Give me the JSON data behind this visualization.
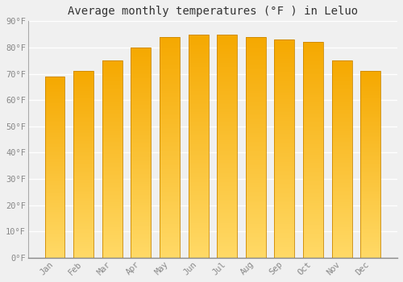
{
  "title": "Average monthly temperatures (°F ) in Leluo",
  "months": [
    "Jan",
    "Feb",
    "Mar",
    "Apr",
    "May",
    "Jun",
    "Jul",
    "Aug",
    "Sep",
    "Oct",
    "Nov",
    "Dec"
  ],
  "values": [
    69,
    71,
    75,
    80,
    84,
    85,
    85,
    84,
    83,
    82,
    75,
    71
  ],
  "bar_color_top": "#F5A800",
  "bar_color_bottom": "#FFD966",
  "ylim": [
    0,
    90
  ],
  "yticks": [
    0,
    10,
    20,
    30,
    40,
    50,
    60,
    70,
    80,
    90
  ],
  "ytick_labels": [
    "0°F",
    "10°F",
    "20°F",
    "30°F",
    "40°F",
    "50°F",
    "60°F",
    "70°F",
    "80°F",
    "90°F"
  ],
  "bg_color": "#f0f0f0",
  "grid_color": "#ffffff",
  "bar_edge_color": "#cc8800",
  "title_fontsize": 10,
  "tick_fontsize": 7.5,
  "title_color": "#333333",
  "tick_color": "#888888"
}
